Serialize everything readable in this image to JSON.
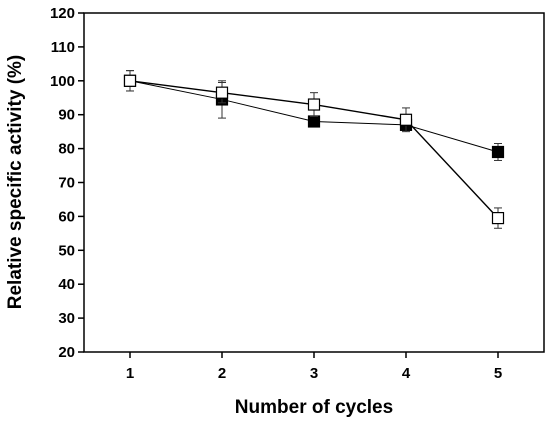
{
  "chart_data": {
    "type": "scatter",
    "xlabel": "Number of cycles",
    "ylabel": "Relative specific activity (%)",
    "xlim": [
      0.5,
      5.5
    ],
    "ylim": [
      20,
      120
    ],
    "xticks": [
      1,
      2,
      3,
      4,
      5
    ],
    "yticks": [
      20,
      30,
      40,
      50,
      60,
      70,
      80,
      90,
      100,
      110,
      120
    ],
    "grid": false,
    "series": [
      {
        "marker": "filled-square",
        "color": "#000000",
        "x": [
          1,
          2,
          3,
          4,
          5
        ],
        "y": [
          100,
          94.5,
          88,
          87,
          79
        ],
        "error": [
          3,
          5.5,
          1.5,
          1,
          2.5
        ]
      },
      {
        "marker": "open-square",
        "color": "#000000",
        "x": [
          1,
          2,
          3,
          4,
          5
        ],
        "y": [
          100,
          96.5,
          93,
          88.5,
          59.5
        ],
        "error": [
          3,
          3,
          3.5,
          3.5,
          3
        ]
      }
    ]
  }
}
